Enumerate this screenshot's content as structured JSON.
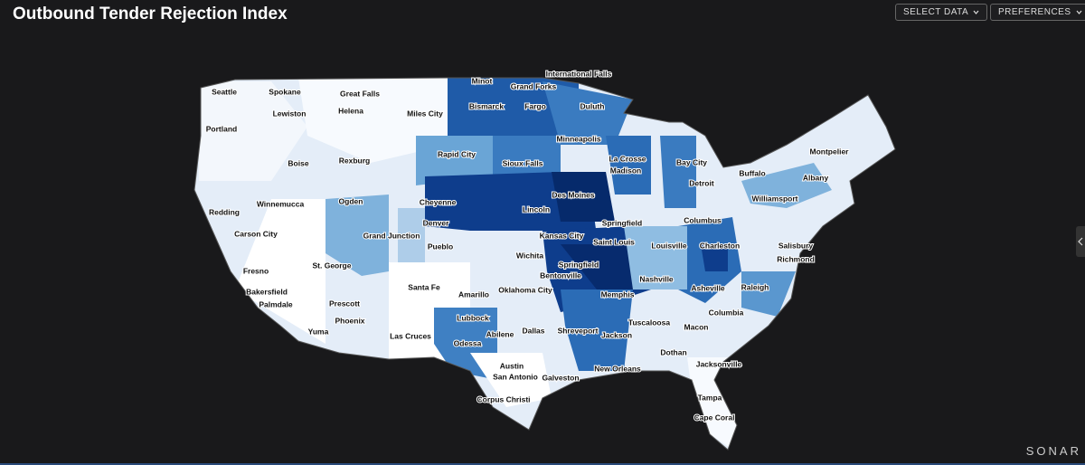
{
  "header": {
    "title": "Outbound Tender Rejection Index",
    "buttons": [
      "SELECT DATA",
      "PREFERENCES"
    ]
  },
  "map": {
    "cities": [
      "International Falls",
      "Minot",
      "Grand Forks",
      "Seattle",
      "Spokane",
      "Great Falls",
      "Bismarck",
      "Fargo",
      "Duluth",
      "Lewiston",
      "Helena",
      "Miles City",
      "Portland",
      "Minneapolis",
      "Rapid City",
      "Sioux Falls",
      "La Crosse",
      "Boise",
      "Rexburg",
      "Madison",
      "Bay City",
      "Buffalo",
      "Montpelier",
      "Albany",
      "Detroit",
      "Williamsport",
      "Winnemucca",
      "Ogden",
      "Cheyenne",
      "Des Moines",
      "Lincoln",
      "Redding",
      "Denver",
      "Springfield",
      "Columbus",
      "Carson City",
      "Grand Junction",
      "Pueblo",
      "Kansas City",
      "Saint Louis",
      "Louisville",
      "Charleston",
      "Salisbury",
      "Wichita",
      "St. George",
      "Springfield",
      "Richmond",
      "Fresno",
      "Bentonville",
      "Santa Fe",
      "Oklahoma City",
      "Nashville",
      "Asheville",
      "Raleigh",
      "Bakersfield",
      "Prescott",
      "Amarillo",
      "Memphis",
      "Palmdale",
      "Phoenix",
      "Columbia",
      "Tuscaloosa",
      "Lubbock",
      "Macon",
      "Yuma",
      "Dallas",
      "Shreveport",
      "Abilene",
      "Jackson",
      "Las Cruces",
      "Odessa",
      "Dothan",
      "Jacksonville",
      "Austin",
      "New Orleans",
      "San Antonio",
      "Galveston",
      "Corpus Christi",
      "Tampa",
      "Cape Coral"
    ]
  },
  "footer": {
    "brand": "SONAR"
  }
}
